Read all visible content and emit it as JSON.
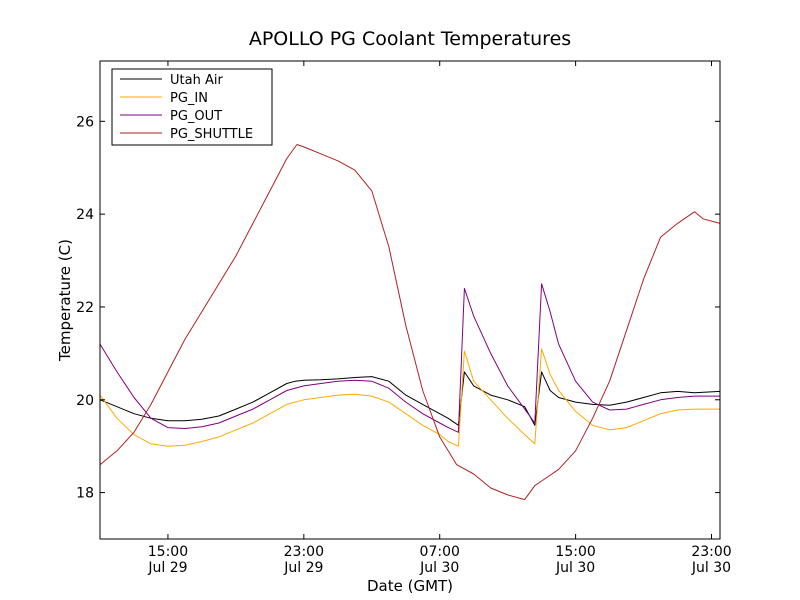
{
  "chart_data": {
    "type": "line",
    "title": "APOLLO PG Coolant Temperatures",
    "xlabel": "Date (GMT)",
    "ylabel": "Temperature (C)",
    "xlim": [
      11.0,
      47.5
    ],
    "ylim": [
      17.0,
      27.3
    ],
    "grid": false,
    "legend_position": "top-left",
    "x_units": "hours since Jul 29 00:00 GMT",
    "x_ticks": [
      {
        "value": 15,
        "line1": "15:00",
        "line2": "Jul 29"
      },
      {
        "value": 23,
        "line1": "23:00",
        "line2": "Jul 29"
      },
      {
        "value": 31,
        "line1": "07:00",
        "line2": "Jul 30"
      },
      {
        "value": 39,
        "line1": "15:00",
        "line2": "Jul 30"
      },
      {
        "value": 47,
        "line1": "23:00",
        "line2": "Jul 30"
      }
    ],
    "y_ticks": [
      {
        "value": 18,
        "label": "18"
      },
      {
        "value": 20,
        "label": "20"
      },
      {
        "value": 22,
        "label": "22"
      },
      {
        "value": 24,
        "label": "24"
      },
      {
        "value": 26,
        "label": "26"
      }
    ],
    "series": [
      {
        "name": "Utah Air",
        "color": "#000000",
        "points": [
          [
            11.0,
            20.0
          ],
          [
            12.0,
            19.85
          ],
          [
            13.0,
            19.7
          ],
          [
            14.0,
            19.6
          ],
          [
            15.0,
            19.55
          ],
          [
            16.0,
            19.55
          ],
          [
            17.0,
            19.58
          ],
          [
            18.0,
            19.65
          ],
          [
            19.0,
            19.8
          ],
          [
            20.0,
            19.95
          ],
          [
            21.0,
            20.15
          ],
          [
            22.0,
            20.35
          ],
          [
            22.5,
            20.4
          ],
          [
            23.0,
            20.42
          ],
          [
            24.0,
            20.43
          ],
          [
            25.0,
            20.45
          ],
          [
            26.0,
            20.48
          ],
          [
            27.0,
            20.5
          ],
          [
            28.0,
            20.4
          ],
          [
            29.0,
            20.1
          ],
          [
            30.0,
            19.9
          ],
          [
            31.0,
            19.7
          ],
          [
            31.5,
            19.6
          ],
          [
            32.1,
            19.45
          ],
          [
            32.45,
            20.6
          ],
          [
            33.0,
            20.3
          ],
          [
            34.0,
            20.1
          ],
          [
            35.0,
            20.0
          ],
          [
            36.0,
            19.85
          ],
          [
            36.6,
            19.45
          ],
          [
            37.0,
            20.6
          ],
          [
            37.5,
            20.2
          ],
          [
            38.0,
            20.05
          ],
          [
            39.0,
            19.95
          ],
          [
            40.0,
            19.9
          ],
          [
            41.0,
            19.88
          ],
          [
            42.0,
            19.95
          ],
          [
            43.0,
            20.05
          ],
          [
            44.0,
            20.15
          ],
          [
            45.0,
            20.18
          ],
          [
            46.0,
            20.15
          ],
          [
            47.5,
            20.18
          ]
        ]
      },
      {
        "name": "PG_IN",
        "color": "#ffaa00",
        "points": [
          [
            11.0,
            20.1
          ],
          [
            12.0,
            19.6
          ],
          [
            13.0,
            19.25
          ],
          [
            14.0,
            19.05
          ],
          [
            15.0,
            19.0
          ],
          [
            16.0,
            19.02
          ],
          [
            17.0,
            19.1
          ],
          [
            18.0,
            19.2
          ],
          [
            19.0,
            19.35
          ],
          [
            20.0,
            19.5
          ],
          [
            21.0,
            19.7
          ],
          [
            22.0,
            19.9
          ],
          [
            23.0,
            20.0
          ],
          [
            24.0,
            20.05
          ],
          [
            25.0,
            20.1
          ],
          [
            26.0,
            20.12
          ],
          [
            27.0,
            20.08
          ],
          [
            28.0,
            19.95
          ],
          [
            29.0,
            19.7
          ],
          [
            30.0,
            19.45
          ],
          [
            31.0,
            19.25
          ],
          [
            31.5,
            19.1
          ],
          [
            32.1,
            19.0
          ],
          [
            32.45,
            21.05
          ],
          [
            33.0,
            20.4
          ],
          [
            34.0,
            20.0
          ],
          [
            35.0,
            19.6
          ],
          [
            36.0,
            19.25
          ],
          [
            36.6,
            19.05
          ],
          [
            37.0,
            21.1
          ],
          [
            37.5,
            20.55
          ],
          [
            38.0,
            20.2
          ],
          [
            39.0,
            19.75
          ],
          [
            40.0,
            19.45
          ],
          [
            41.0,
            19.35
          ],
          [
            42.0,
            19.4
          ],
          [
            43.0,
            19.55
          ],
          [
            44.0,
            19.7
          ],
          [
            45.0,
            19.78
          ],
          [
            46.0,
            19.8
          ],
          [
            47.5,
            19.8
          ]
        ]
      },
      {
        "name": "PG_OUT",
        "color": "#800080",
        "points": [
          [
            11.0,
            21.2
          ],
          [
            12.0,
            20.6
          ],
          [
            13.0,
            20.05
          ],
          [
            14.0,
            19.6
          ],
          [
            15.0,
            19.4
          ],
          [
            16.0,
            19.38
          ],
          [
            17.0,
            19.42
          ],
          [
            18.0,
            19.5
          ],
          [
            19.0,
            19.65
          ],
          [
            20.0,
            19.8
          ],
          [
            21.0,
            20.0
          ],
          [
            22.0,
            20.2
          ],
          [
            23.0,
            20.3
          ],
          [
            24.0,
            20.35
          ],
          [
            25.0,
            20.4
          ],
          [
            26.0,
            20.42
          ],
          [
            27.0,
            20.4
          ],
          [
            28.0,
            20.25
          ],
          [
            29.0,
            19.95
          ],
          [
            30.0,
            19.7
          ],
          [
            31.0,
            19.5
          ],
          [
            31.5,
            19.4
          ],
          [
            32.1,
            19.3
          ],
          [
            32.45,
            22.4
          ],
          [
            33.0,
            21.8
          ],
          [
            34.0,
            21.0
          ],
          [
            35.0,
            20.3
          ],
          [
            36.0,
            19.8
          ],
          [
            36.6,
            19.5
          ],
          [
            37.0,
            22.5
          ],
          [
            37.5,
            21.9
          ],
          [
            38.0,
            21.2
          ],
          [
            39.0,
            20.4
          ],
          [
            40.0,
            19.95
          ],
          [
            41.0,
            19.78
          ],
          [
            42.0,
            19.8
          ],
          [
            43.0,
            19.9
          ],
          [
            44.0,
            20.0
          ],
          [
            45.0,
            20.05
          ],
          [
            46.0,
            20.08
          ],
          [
            47.5,
            20.08
          ]
        ]
      },
      {
        "name": "PG_SHUTTLE",
        "color": "#b22222",
        "points": [
          [
            11.0,
            18.6
          ],
          [
            12.0,
            18.9
          ],
          [
            13.0,
            19.3
          ],
          [
            14.0,
            19.9
          ],
          [
            15.0,
            20.6
          ],
          [
            16.0,
            21.3
          ],
          [
            17.0,
            21.9
          ],
          [
            18.0,
            22.5
          ],
          [
            19.0,
            23.1
          ],
          [
            20.0,
            23.8
          ],
          [
            21.0,
            24.5
          ],
          [
            22.0,
            25.2
          ],
          [
            22.6,
            25.5
          ],
          [
            23.0,
            25.45
          ],
          [
            24.0,
            25.3
          ],
          [
            25.0,
            25.15
          ],
          [
            26.0,
            24.95
          ],
          [
            27.0,
            24.5
          ],
          [
            28.0,
            23.3
          ],
          [
            29.0,
            21.6
          ],
          [
            30.0,
            20.2
          ],
          [
            31.0,
            19.2
          ],
          [
            32.0,
            18.6
          ],
          [
            33.0,
            18.4
          ],
          [
            34.0,
            18.1
          ],
          [
            35.0,
            17.95
          ],
          [
            36.0,
            17.85
          ],
          [
            36.6,
            18.15
          ],
          [
            37.0,
            18.25
          ],
          [
            38.0,
            18.5
          ],
          [
            39.0,
            18.9
          ],
          [
            40.0,
            19.6
          ],
          [
            41.0,
            20.4
          ],
          [
            42.0,
            21.5
          ],
          [
            43.0,
            22.6
          ],
          [
            44.0,
            23.5
          ],
          [
            45.0,
            23.8
          ],
          [
            46.0,
            24.05
          ],
          [
            46.5,
            23.9
          ],
          [
            47.0,
            23.85
          ],
          [
            47.5,
            23.8
          ]
        ]
      }
    ]
  }
}
